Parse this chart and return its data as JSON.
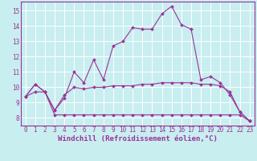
{
  "xlabel": "Windchill (Refroidissement éolien,°C)",
  "bg_color": "#c8eef0",
  "grid_color": "#ffffff",
  "line_color": "#993399",
  "xlim": [
    -0.5,
    23.5
  ],
  "ylim": [
    7.5,
    15.6
  ],
  "xticks": [
    0,
    1,
    2,
    3,
    4,
    5,
    6,
    7,
    8,
    9,
    10,
    11,
    12,
    13,
    14,
    15,
    16,
    17,
    18,
    19,
    20,
    21,
    22,
    23
  ],
  "yticks": [
    8,
    9,
    10,
    11,
    12,
    13,
    14,
    15
  ],
  "line1_x": [
    0,
    1,
    2,
    3,
    4,
    5,
    6,
    7,
    8,
    9,
    10,
    11,
    12,
    13,
    14,
    15,
    16,
    17,
    18,
    19,
    20,
    21,
    22,
    23
  ],
  "line1_y": [
    9.4,
    10.2,
    9.7,
    8.5,
    9.3,
    11.0,
    10.3,
    11.8,
    10.5,
    12.7,
    13.0,
    13.9,
    13.8,
    13.8,
    14.8,
    15.3,
    14.1,
    13.8,
    10.5,
    10.7,
    10.3,
    9.5,
    8.4,
    7.8
  ],
  "line2_x": [
    0,
    1,
    2,
    3,
    4,
    5,
    6,
    7,
    8,
    9,
    10,
    11,
    12,
    13,
    14,
    15,
    16,
    17,
    18,
    19,
    20,
    21,
    22,
    23
  ],
  "line2_y": [
    9.4,
    10.2,
    9.7,
    8.5,
    9.5,
    10.0,
    9.9,
    10.0,
    10.0,
    10.1,
    10.1,
    10.1,
    10.2,
    10.2,
    10.3,
    10.3,
    10.3,
    10.3,
    10.2,
    10.2,
    10.1,
    9.7,
    8.4,
    7.8
  ],
  "line3_x": [
    0,
    1,
    2,
    3,
    4,
    5,
    6,
    7,
    8,
    9,
    10,
    11,
    12,
    13,
    14,
    15,
    16,
    17,
    18,
    19,
    20,
    21,
    22,
    23
  ],
  "line3_y": [
    9.4,
    9.7,
    9.7,
    8.2,
    8.2,
    8.2,
    8.2,
    8.2,
    8.2,
    8.2,
    8.2,
    8.2,
    8.2,
    8.2,
    8.2,
    8.2,
    8.2,
    8.2,
    8.2,
    8.2,
    8.2,
    8.2,
    8.2,
    7.8
  ],
  "tick_fontsize": 5.5,
  "label_fontsize": 6.5
}
